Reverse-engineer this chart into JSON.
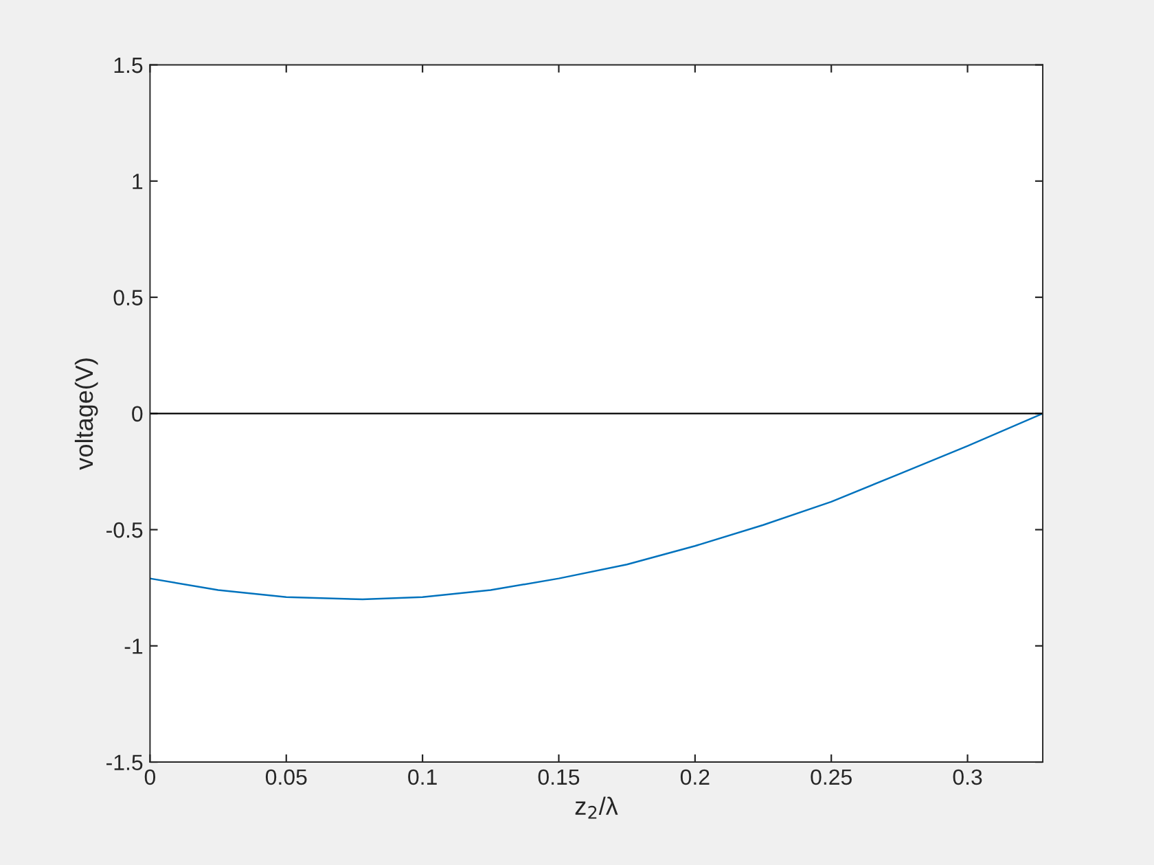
{
  "chart_data": {
    "type": "line",
    "xlabel": "z$_{2}$/λ",
    "ylabel": "voltage(V)",
    "x": [
      0,
      0.025,
      0.05,
      0.078,
      0.1,
      0.125,
      0.15,
      0.175,
      0.2,
      0.225,
      0.25,
      0.275,
      0.3,
      0.3276
    ],
    "series": [
      {
        "color": "#0072bd",
        "values": [
          -0.71,
          -0.76,
          -0.79,
          -0.8,
          -0.79,
          -0.76,
          -0.71,
          -0.65,
          -0.57,
          -0.48,
          -0.38,
          -0.26,
          -0.14,
          0
        ]
      }
    ],
    "xlim": [
      0,
      0.3276
    ],
    "xticks": [
      0,
      0.05,
      0.1,
      0.15,
      0.2,
      0.25,
      0.3
    ],
    "ylim": [
      -1.5,
      1.5
    ],
    "yticks": [
      -1.5,
      -1,
      -0.5,
      0,
      0.5,
      1,
      1.5
    ],
    "ref_lines": [
      {
        "axis": "y",
        "value": 0,
        "color": "#000000"
      }
    ],
    "grid": false,
    "legend": false
  }
}
